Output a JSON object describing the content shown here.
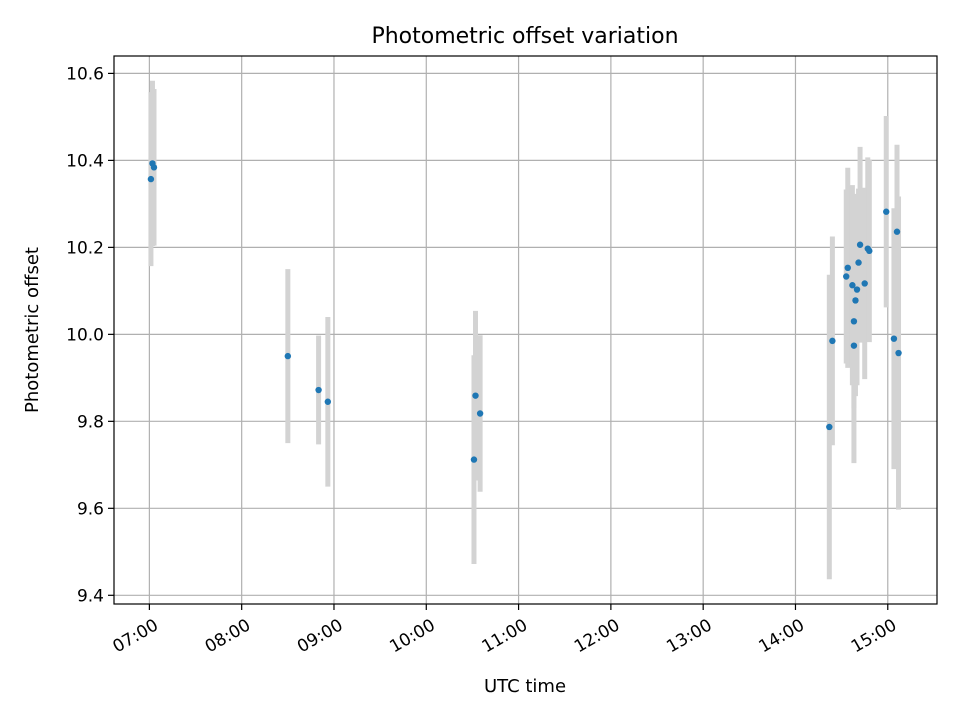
{
  "chart_data": {
    "type": "scatter",
    "title": "Photometric offset variation",
    "xlabel": "UTC time",
    "ylabel": "Photometric offset",
    "xlim": [
      "06:37",
      "15:32"
    ],
    "ylim": [
      9.38,
      10.64
    ],
    "xticks": [
      "07:00",
      "08:00",
      "09:00",
      "10:00",
      "11:00",
      "12:00",
      "13:00",
      "14:00",
      "15:00"
    ],
    "yticks": [
      9.4,
      9.6,
      9.8,
      10.0,
      10.2,
      10.4,
      10.6
    ],
    "grid": true,
    "colors": {
      "point": "#1f77b4",
      "errorbar": "#d3d3d3",
      "grid": "#b0b0b0"
    },
    "points": [
      {
        "x": "07:01",
        "y": 10.357,
        "err": 0.2
      },
      {
        "x": "07:02",
        "y": 10.393,
        "err": 0.19
      },
      {
        "x": "07:03",
        "y": 10.384,
        "err": 0.18
      },
      {
        "x": "08:30",
        "y": 9.95,
        "err": 0.2
      },
      {
        "x": "08:50",
        "y": 9.872,
        "err": 0.125
      },
      {
        "x": "08:56",
        "y": 9.845,
        "err": 0.195
      },
      {
        "x": "10:31",
        "y": 9.712,
        "err": 0.24
      },
      {
        "x": "10:32",
        "y": 9.859,
        "err": 0.195
      },
      {
        "x": "10:35",
        "y": 9.818,
        "err": 0.18
      },
      {
        "x": "14:22",
        "y": 9.787,
        "err": 0.35
      },
      {
        "x": "14:24",
        "y": 9.985,
        "err": 0.24
      },
      {
        "x": "14:33",
        "y": 10.133,
        "err": 0.2
      },
      {
        "x": "14:34",
        "y": 10.153,
        "err": 0.23
      },
      {
        "x": "14:37",
        "y": 10.113,
        "err": 0.23
      },
      {
        "x": "14:38",
        "y": 10.03,
        "err": 0.2
      },
      {
        "x": "14:38",
        "y": 9.974,
        "err": 0.27
      },
      {
        "x": "14:39",
        "y": 10.078,
        "err": 0.22
      },
      {
        "x": "14:40",
        "y": 10.103,
        "err": 0.22
      },
      {
        "x": "14:41",
        "y": 10.165,
        "err": 0.17
      },
      {
        "x": "14:42",
        "y": 10.206,
        "err": 0.225
      },
      {
        "x": "14:45",
        "y": 10.117,
        "err": 0.22
      },
      {
        "x": "14:47",
        "y": 10.197,
        "err": 0.21
      },
      {
        "x": "14:48",
        "y": 10.192,
        "err": 0.21
      },
      {
        "x": "14:59",
        "y": 10.282,
        "err": 0.22
      },
      {
        "x": "15:04",
        "y": 9.99,
        "err": 0.3
      },
      {
        "x": "15:06",
        "y": 10.236,
        "err": 0.2
      },
      {
        "x": "15:07",
        "y": 9.957,
        "err": 0.36
      }
    ]
  }
}
